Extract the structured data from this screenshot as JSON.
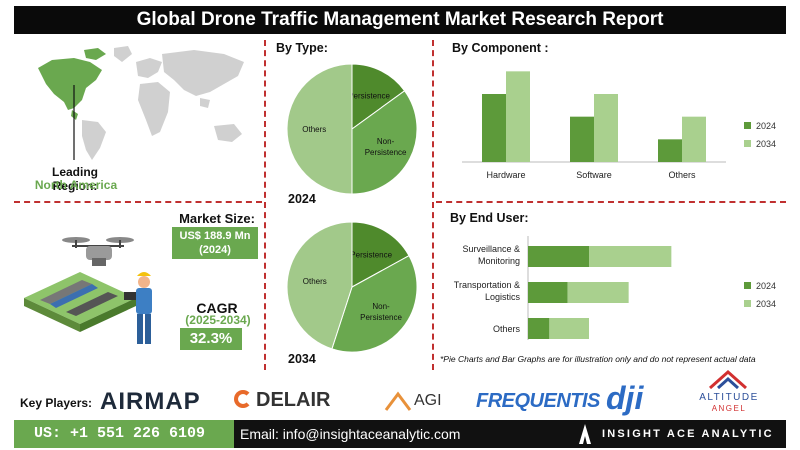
{
  "title": "Global Drone Traffic Management Market Research Report",
  "leading_region": {
    "label": "Leading Region:",
    "value": "North America"
  },
  "market_size": {
    "label": "Market Size:",
    "value_line1": "US$ 188.9 Mn",
    "value_line2": "(2024)"
  },
  "cagr": {
    "label": "CAGR",
    "period": "(2025-2034)",
    "value": "32.3%"
  },
  "by_type": {
    "label": "By Type:",
    "year_a": "2024",
    "year_b": "2034"
  },
  "by_component": {
    "label": "By Component :"
  },
  "by_end_user": {
    "label": "By End User:"
  },
  "note": "*Pie Charts and Bar Graphs are for illustration only and do not represent actual data",
  "key_players": {
    "label": "Key Players:",
    "logos": [
      "AIRMAP",
      "DELAIR",
      "AGI",
      "FREQUENTIS",
      "dji",
      "ALTITUDE",
      "ANGEL"
    ]
  },
  "footer": {
    "phone": "US: +1 551 226 6109",
    "email": "Email: info@insightaceanalytic.com",
    "brand": "INSIGHT ACE ANALYTIC"
  },
  "colors": {
    "dark_green": "#5d9a3a",
    "light_green": "#a9d08e",
    "accent": "#6aa84f",
    "divider": "#c03030"
  },
  "chart_data": [
    {
      "type": "pie",
      "title": "2024",
      "labels": [
        "Persistence",
        "Non-Persistence",
        "Others"
      ],
      "values": [
        15,
        35,
        50
      ],
      "colors": [
        "#4f8a2c",
        "#6aa84f",
        "#a2c98a"
      ]
    },
    {
      "type": "pie",
      "title": "2034",
      "labels": [
        "Persistence",
        "Non-Persistence",
        "Others"
      ],
      "values": [
        17,
        38,
        45
      ],
      "colors": [
        "#4f8a2c",
        "#6aa84f",
        "#a2c98a"
      ]
    },
    {
      "type": "bar",
      "title": "By Component :",
      "categories": [
        "Hardware",
        "Software",
        "Others"
      ],
      "series": [
        {
          "name": "2024",
          "values": [
            3,
            2,
            1
          ]
        },
        {
          "name": "2034",
          "values": [
            4,
            3,
            2
          ]
        }
      ],
      "ylim": [
        0,
        4.5
      ],
      "legend": "right"
    },
    {
      "type": "bar",
      "orientation": "horizontal",
      "stacked": true,
      "title": "By End User:",
      "categories": [
        "Surveillance & Monitoring",
        "Transportation & Logistics",
        "Others"
      ],
      "series": [
        {
          "name": "2024",
          "values": [
            2,
            1.3,
            0.7
          ]
        },
        {
          "name": "2034",
          "values": [
            2.7,
            2,
            1.3
          ]
        }
      ],
      "legend": "right"
    }
  ]
}
